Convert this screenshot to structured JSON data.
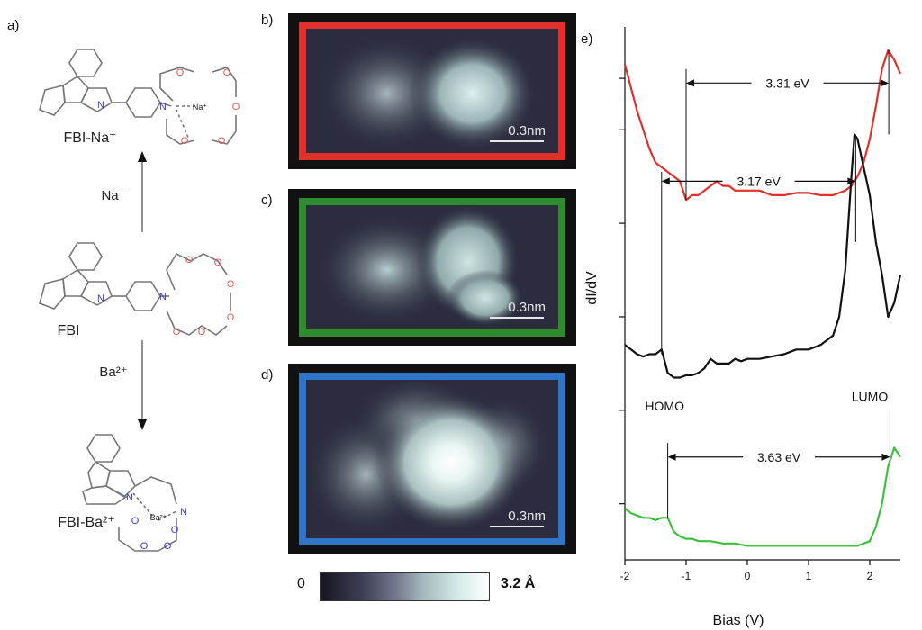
{
  "panels": {
    "a": "a)",
    "b": "b)",
    "c": "c)",
    "d": "d)",
    "e": "e)"
  },
  "molecules": {
    "fbi_na": "FBI-Na⁺",
    "fbi": "FBI",
    "fbi_ba": "FBI-Ba²⁺",
    "arrow_up_label": "Na⁺",
    "arrow_down_label": "Ba²⁺",
    "atom_n": "N",
    "atom_o": "O",
    "ion_na": "Na⁺",
    "ion_ba": "Ba²⁺"
  },
  "stm": {
    "scale_text": "0.3nm",
    "colors": {
      "b": "#e0302c",
      "c": "#2e8b2e",
      "d": "#2f74c6"
    }
  },
  "colorbar": {
    "min": "0",
    "max": "3.2 Å"
  },
  "chart_data": {
    "type": "line",
    "xlabel": "Bias (V)",
    "ylabel": "dI/dV",
    "xlim": [
      -2,
      2.5
    ],
    "xticks": [
      "-2",
      "-1",
      "0",
      "1",
      "2"
    ],
    "series": [
      {
        "color": "#e0302c",
        "x": [
          -2.0,
          -1.9,
          -1.8,
          -1.7,
          -1.6,
          -1.5,
          -1.4,
          -1.3,
          -1.2,
          -1.1,
          -1.0,
          -0.9,
          -0.8,
          -0.7,
          -0.6,
          -0.5,
          -0.4,
          -0.3,
          -0.2,
          -0.1,
          0.0,
          0.2,
          0.4,
          0.6,
          0.8,
          1.0,
          1.2,
          1.4,
          1.6,
          1.7,
          1.8,
          1.9,
          2.0,
          2.1,
          2.2,
          2.3,
          2.4,
          2.5
        ],
        "y": [
          8.4,
          7.9,
          7.4,
          7.0,
          6.6,
          6.3,
          6.2,
          6.1,
          6.0,
          5.9,
          5.5,
          5.6,
          5.6,
          5.7,
          5.8,
          5.9,
          5.8,
          5.8,
          5.7,
          5.7,
          5.7,
          5.7,
          5.6,
          5.6,
          5.65,
          5.65,
          5.6,
          5.6,
          5.7,
          5.8,
          6.0,
          6.3,
          6.8,
          7.5,
          8.3,
          8.7,
          8.5,
          8.2
        ]
      },
      {
        "color": "#111111",
        "x": [
          -2.0,
          -1.9,
          -1.8,
          -1.7,
          -1.6,
          -1.5,
          -1.4,
          -1.3,
          -1.2,
          -1.1,
          -1.0,
          -0.9,
          -0.8,
          -0.7,
          -0.6,
          -0.5,
          -0.4,
          -0.3,
          -0.2,
          -0.1,
          0.0,
          0.2,
          0.4,
          0.6,
          0.8,
          1.0,
          1.2,
          1.4,
          1.5,
          1.6,
          1.7,
          1.75,
          1.8,
          1.9,
          2.0,
          2.1,
          2.2,
          2.3,
          2.4,
          2.5
        ],
        "y": [
          2.4,
          2.3,
          2.2,
          2.15,
          2.2,
          2.2,
          2.3,
          1.8,
          1.7,
          1.7,
          1.75,
          1.75,
          1.8,
          1.9,
          2.1,
          2.0,
          2.0,
          2.0,
          2.1,
          2.05,
          2.1,
          2.1,
          2.15,
          2.2,
          2.3,
          2.3,
          2.4,
          2.6,
          3.0,
          4.0,
          6.0,
          6.9,
          6.8,
          6.2,
          5.6,
          4.6,
          3.9,
          3.0,
          3.3,
          3.9
        ]
      },
      {
        "color": "#3fbf3f",
        "x": [
          -2.0,
          -1.9,
          -1.8,
          -1.7,
          -1.6,
          -1.5,
          -1.4,
          -1.3,
          -1.2,
          -1.1,
          -1.0,
          -0.9,
          -0.8,
          -0.6,
          -0.4,
          -0.2,
          0.0,
          0.2,
          0.4,
          0.6,
          0.8,
          1.0,
          1.2,
          1.4,
          1.6,
          1.8,
          1.9,
          2.0,
          2.1,
          2.2,
          2.3,
          2.4,
          2.5
        ],
        "y": [
          -1.1,
          -1.2,
          -1.25,
          -1.3,
          -1.3,
          -1.35,
          -1.3,
          -1.3,
          -1.6,
          -1.7,
          -1.75,
          -1.75,
          -1.8,
          -1.8,
          -1.85,
          -1.85,
          -1.9,
          -1.9,
          -1.9,
          -1.9,
          -1.9,
          -1.9,
          -1.9,
          -1.9,
          -1.9,
          -1.9,
          -1.85,
          -1.8,
          -1.5,
          -1.0,
          -0.2,
          0.2,
          0.0
        ]
      }
    ],
    "annotations": [
      {
        "text": "3.31 eV",
        "x1": -1.0,
        "x2": 2.31,
        "y": 8.0
      },
      {
        "text": "3.17 eV",
        "x1": -1.4,
        "x2": 1.77,
        "y": 5.9
      },
      {
        "text": "3.63 eV",
        "x1": -1.3,
        "x2": 2.33,
        "y": 0.0
      }
    ],
    "labels": {
      "homo": "HOMO",
      "lumo": "LUMO"
    }
  }
}
